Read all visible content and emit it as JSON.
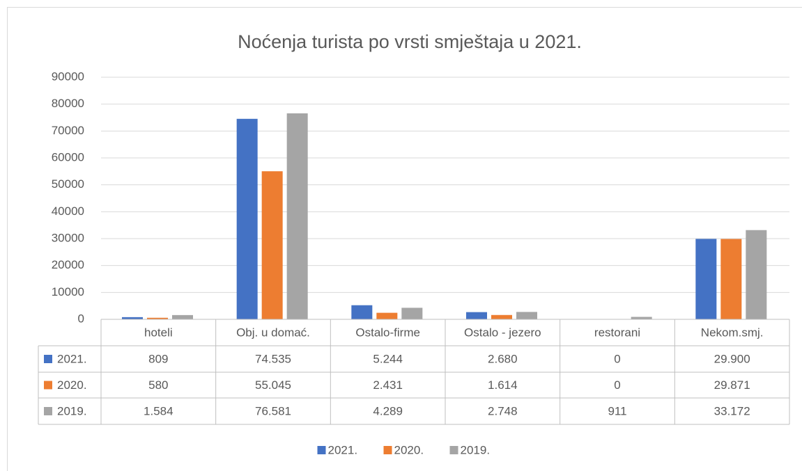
{
  "chart_data": {
    "type": "bar",
    "title": "Noćenja turista po vrsti smještaja u 2021.",
    "categories": [
      "hoteli",
      "Obj. u domać.",
      "Ostalo-firme",
      "Ostalo - jezero",
      "restorani",
      "Nekom.smj."
    ],
    "series": [
      {
        "name": "2021.",
        "color": "#4472c4",
        "values": [
          809,
          74535,
          5244,
          2680,
          0,
          29900
        ],
        "value_labels": [
          "809",
          "74.535",
          "5.244",
          "2.680",
          "0",
          "29.900"
        ]
      },
      {
        "name": "2020.",
        "color": "#ed7d31",
        "values": [
          580,
          55045,
          2431,
          1614,
          0,
          29871
        ],
        "value_labels": [
          "580",
          "55.045",
          "2.431",
          "1.614",
          "0",
          "29.871"
        ]
      },
      {
        "name": "2019.",
        "color": "#a5a5a5",
        "values": [
          1584,
          76581,
          4289,
          2748,
          911,
          33172
        ],
        "value_labels": [
          "1.584",
          "76.581",
          "4.289",
          "2.748",
          "911",
          "33.172"
        ]
      }
    ],
    "ylim": [
      0,
      90000
    ],
    "yticks": [
      0,
      10000,
      20000,
      30000,
      40000,
      50000,
      60000,
      70000,
      80000,
      90000
    ],
    "grid": true,
    "legend": "bottom"
  }
}
